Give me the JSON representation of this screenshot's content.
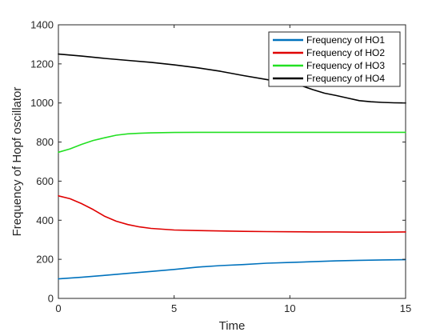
{
  "chart_data": {
    "type": "line",
    "title": "",
    "xlabel": "Time",
    "ylabel": "Frequency of Hopf oscillator",
    "xlim": [
      0,
      15
    ],
    "ylim": [
      0,
      1400
    ],
    "xticks": [
      0,
      5,
      10,
      15
    ],
    "yticks": [
      0,
      200,
      400,
      600,
      800,
      1000,
      1200,
      1400
    ],
    "grid": false,
    "legend_position": "top-right",
    "series": [
      {
        "name": "Frequency of HO1",
        "color": "#0072BD",
        "x": [
          0,
          1,
          2,
          3,
          4,
          5,
          6,
          7,
          8,
          9,
          10,
          11,
          12,
          13,
          14,
          15
        ],
        "y": [
          100,
          108,
          118,
          128,
          138,
          148,
          160,
          168,
          173,
          180,
          184,
          188,
          192,
          195,
          197,
          198
        ]
      },
      {
        "name": "Frequency of HO2",
        "color": "#E00000",
        "x": [
          0,
          0.5,
          1,
          1.5,
          2,
          2.5,
          3,
          3.5,
          4,
          5,
          6,
          7,
          8,
          9,
          10,
          11,
          12,
          13,
          14,
          15
        ],
        "y": [
          525,
          510,
          485,
          455,
          420,
          395,
          378,
          366,
          358,
          350,
          347,
          345,
          343,
          342,
          341,
          340,
          340,
          339,
          339,
          340
        ]
      },
      {
        "name": "Frequency of HO3",
        "color": "#22E022",
        "x": [
          0,
          0.5,
          1,
          1.5,
          2,
          2.5,
          3,
          3.5,
          4,
          5,
          6,
          7,
          8,
          9,
          10,
          11,
          12,
          13,
          14,
          15
        ],
        "y": [
          748,
          765,
          788,
          808,
          822,
          835,
          842,
          845,
          847,
          849,
          850,
          850,
          850,
          850,
          850,
          850,
          850,
          850,
          850,
          850
        ]
      },
      {
        "name": "Frequency of HO4",
        "color": "#000000",
        "x": [
          0,
          1,
          2,
          3,
          4,
          5,
          6,
          7,
          8,
          9,
          10,
          10.5,
          11,
          11.5,
          12,
          12.5,
          13,
          13.5,
          14,
          14.5,
          15
        ],
        "y": [
          1250,
          1240,
          1228,
          1218,
          1208,
          1195,
          1180,
          1162,
          1140,
          1120,
          1100,
          1088,
          1068,
          1050,
          1038,
          1025,
          1012,
          1006,
          1003,
          1001,
          1000
        ]
      }
    ]
  }
}
